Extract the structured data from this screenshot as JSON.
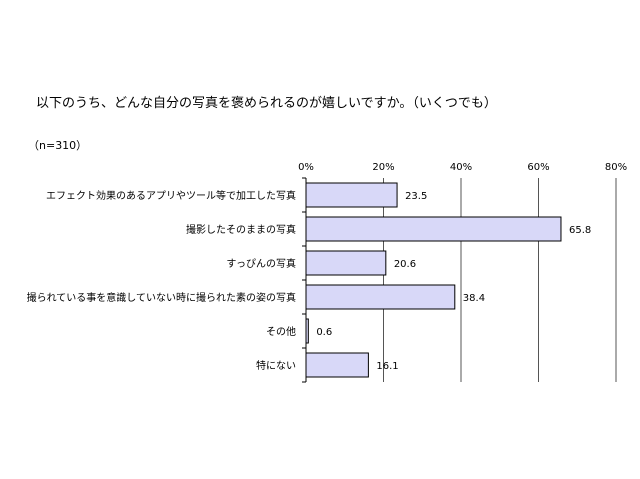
{
  "title": "以下のうち、どんな自分の写真を褒められるのが嬉しいですか。（いくつでも）",
  "sample": "（n=310）",
  "chart_data": {
    "type": "bar",
    "orientation": "horizontal",
    "categories": [
      "エフェクト効果のあるアプリやツール等で加工した写真",
      "撮影したそのままの写真",
      "すっぴんの写真",
      "撮られている事を意識していない時に撮られた素の姿の写真",
      "その他",
      "特にない"
    ],
    "values": [
      23.5,
      65.8,
      20.6,
      38.4,
      0.6,
      16.1
    ],
    "value_labels": [
      "23.5",
      "65.8",
      "20.6",
      "38.4",
      "0.6",
      "16.1"
    ],
    "xlim": [
      0,
      80
    ],
    "ticks": [
      0,
      20,
      40,
      60,
      80
    ],
    "tick_labels": [
      "0%",
      "20%",
      "40%",
      "60%",
      "80%"
    ],
    "grid": true,
    "bar_color": "#d8d8f8",
    "bar_stroke": "#000000"
  }
}
